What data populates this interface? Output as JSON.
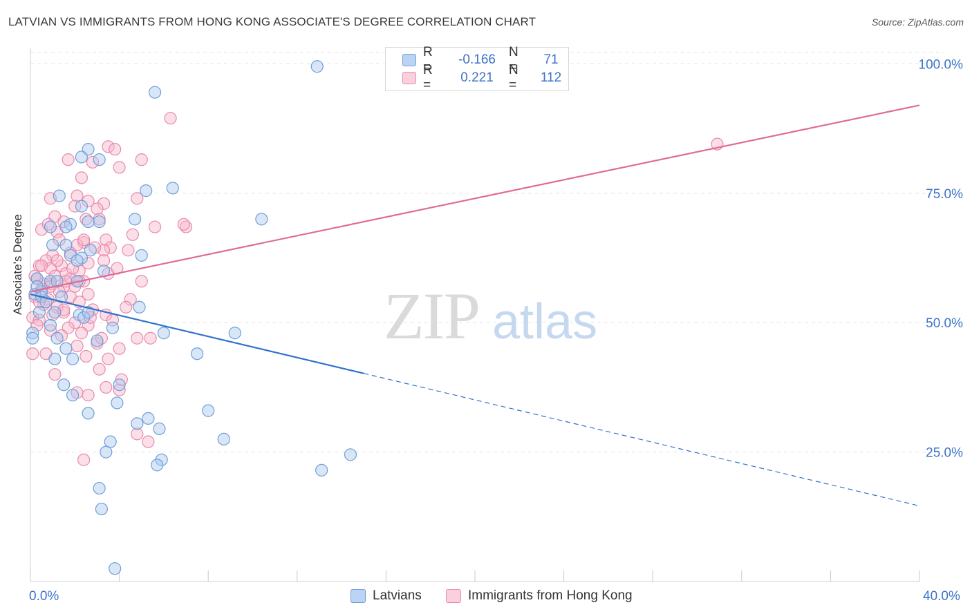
{
  "title": "LATVIAN VS IMMIGRANTS FROM HONG KONG ASSOCIATE'S DEGREE CORRELATION CHART",
  "source": "Source: ZipAtlas.com",
  "watermark": {
    "zip": "ZIP",
    "atlas": "atlas"
  },
  "colors": {
    "blue_fill": "#a9c8f0",
    "blue_stroke": "#6f9fd8",
    "blue_line": "#2e72cc",
    "pink_fill": "#f7b8cc",
    "pink_stroke": "#e98aaa",
    "pink_line": "#e06b95",
    "tick_text": "#3b73c9",
    "grid": "#e3e3e3"
  },
  "legend": {
    "rows": [
      {
        "r_label": "R =",
        "r_value": "-0.166",
        "n_label": "N =",
        "n_value": "71"
      },
      {
        "r_label": "R =",
        "r_value": "0.221",
        "n_label": "N =",
        "n_value": "112"
      }
    ]
  },
  "bottom_legend": [
    "Latvians",
    "Immigrants from Hong Kong"
  ],
  "chart_data": {
    "type": "scatter",
    "title": "LATVIAN VS IMMIGRANTS FROM HONG KONG ASSOCIATE'S DEGREE CORRELATION CHART",
    "xlabel": "",
    "ylabel": "Associate's Degree",
    "xlim": [
      0,
      40
    ],
    "ylim": [
      0,
      103
    ],
    "x_tick_labels": [
      "0.0%",
      "40.0%"
    ],
    "y_ticks": [
      25,
      50,
      75,
      100
    ],
    "y_tick_labels": [
      "25.0%",
      "50.0%",
      "75.0%",
      "100.0%"
    ],
    "grid": true,
    "legend_placement": "top-center",
    "series": [
      {
        "name": "Latvians",
        "R": -0.166,
        "N": 71,
        "trend": {
          "x0": 0,
          "y0": 55.5,
          "x1": 15.0,
          "y1": 40.2,
          "dash_to_x": 40,
          "dash_to_y": 14.6
        },
        "points": [
          [
            12.9,
            99.5
          ],
          [
            5.6,
            94.5
          ],
          [
            2.6,
            83.5
          ],
          [
            2.3,
            82
          ],
          [
            3.1,
            81.5
          ],
          [
            6.4,
            76
          ],
          [
            5.2,
            75.5
          ],
          [
            1.3,
            74.5
          ],
          [
            2.3,
            72.5
          ],
          [
            10.4,
            70
          ],
          [
            4.7,
            70
          ],
          [
            3.1,
            69.5
          ],
          [
            2.6,
            69.5
          ],
          [
            1.8,
            69
          ],
          [
            0.9,
            68.5
          ],
          [
            1.6,
            68.5
          ],
          [
            1.0,
            65
          ],
          [
            1.6,
            65
          ],
          [
            2.7,
            64
          ],
          [
            1.8,
            63
          ],
          [
            5.0,
            63
          ],
          [
            2.3,
            62.5
          ],
          [
            2.1,
            62
          ],
          [
            3.3,
            60
          ],
          [
            0.3,
            58.5
          ],
          [
            0.9,
            58
          ],
          [
            2.1,
            58
          ],
          [
            0.5,
            56
          ],
          [
            0.2,
            55.5
          ],
          [
            0.5,
            55
          ],
          [
            0.7,
            54
          ],
          [
            1.4,
            55
          ],
          [
            4.9,
            53
          ],
          [
            1.1,
            52
          ],
          [
            2.2,
            51.5
          ],
          [
            2.4,
            51
          ],
          [
            3.7,
            49
          ],
          [
            0.9,
            49.5
          ],
          [
            0.1,
            48
          ],
          [
            6.0,
            48
          ],
          [
            9.2,
            48
          ],
          [
            1.2,
            47
          ],
          [
            3.0,
            46.5
          ],
          [
            1.6,
            45
          ],
          [
            7.5,
            44
          ],
          [
            1.1,
            43
          ],
          [
            1.9,
            43
          ],
          [
            4.0,
            38
          ],
          [
            1.5,
            38
          ],
          [
            3.9,
            34.5
          ],
          [
            2.6,
            32.5
          ],
          [
            8.0,
            33
          ],
          [
            5.3,
            31.5
          ],
          [
            4.8,
            30.5
          ],
          [
            5.8,
            29.5
          ],
          [
            8.7,
            27.5
          ],
          [
            3.6,
            27
          ],
          [
            3.4,
            25
          ],
          [
            14.4,
            24.5
          ],
          [
            5.9,
            23.5
          ],
          [
            5.7,
            22.5
          ],
          [
            13.1,
            21.5
          ],
          [
            3.1,
            18
          ],
          [
            3.2,
            14
          ],
          [
            3.8,
            2.5
          ],
          [
            0.3,
            57
          ],
          [
            0.1,
            47
          ],
          [
            0.4,
            52
          ],
          [
            1.9,
            36
          ],
          [
            2.6,
            52
          ],
          [
            1.2,
            58
          ]
        ]
      },
      {
        "name": "Immigrants from Hong Kong",
        "R": 0.221,
        "N": 112,
        "trend": {
          "x0": 0,
          "y0": 56.0,
          "x1": 40,
          "y1": 92.0
        },
        "points": [
          [
            6.3,
            89.5
          ],
          [
            3.5,
            84
          ],
          [
            3.8,
            83.5
          ],
          [
            1.7,
            81.5
          ],
          [
            5.0,
            81.5
          ],
          [
            2.8,
            81
          ],
          [
            4.0,
            80
          ],
          [
            2.3,
            78
          ],
          [
            2.1,
            74.5
          ],
          [
            0.9,
            74
          ],
          [
            4.8,
            74
          ],
          [
            2.6,
            73.5
          ],
          [
            3.3,
            73
          ],
          [
            2.0,
            72.5
          ],
          [
            3.0,
            72
          ],
          [
            1.1,
            70.5
          ],
          [
            2.5,
            70
          ],
          [
            1.5,
            69.5
          ],
          [
            5.6,
            68.5
          ],
          [
            7.0,
            68.5
          ],
          [
            0.5,
            68
          ],
          [
            1.2,
            67.5
          ],
          [
            4.6,
            67
          ],
          [
            3.4,
            66
          ],
          [
            2.4,
            65.5
          ],
          [
            2.1,
            65
          ],
          [
            3.6,
            64.5
          ],
          [
            3.3,
            64
          ],
          [
            4.4,
            64
          ],
          [
            1.8,
            63.5
          ],
          [
            1.0,
            63
          ],
          [
            0.7,
            62
          ],
          [
            3.3,
            62
          ],
          [
            2.6,
            61.5
          ],
          [
            1.4,
            61
          ],
          [
            0.4,
            61
          ],
          [
            0.9,
            60.5
          ],
          [
            2.2,
            60
          ],
          [
            1.6,
            59.5
          ],
          [
            3.5,
            59.5
          ],
          [
            1.1,
            59
          ],
          [
            0.3,
            58.5
          ],
          [
            1.8,
            58.5
          ],
          [
            2.4,
            58
          ],
          [
            5.0,
            58
          ],
          [
            0.9,
            57.5
          ],
          [
            1.5,
            57
          ],
          [
            2.0,
            57
          ],
          [
            0.5,
            56.5
          ],
          [
            1.3,
            56
          ],
          [
            2.6,
            55.5
          ],
          [
            0.2,
            55
          ],
          [
            0.8,
            54.5
          ],
          [
            4.5,
            54.5
          ],
          [
            0.6,
            53.5
          ],
          [
            1.2,
            53
          ],
          [
            4.3,
            53
          ],
          [
            2.8,
            52.5
          ],
          [
            1.5,
            52
          ],
          [
            3.4,
            51.5
          ],
          [
            0.1,
            51
          ],
          [
            0.4,
            50.5
          ],
          [
            2.0,
            50
          ],
          [
            3.7,
            50.5
          ],
          [
            2.6,
            49.5
          ],
          [
            1.7,
            49
          ],
          [
            0.9,
            48.5
          ],
          [
            2.3,
            48
          ],
          [
            5.4,
            47
          ],
          [
            1.4,
            47.5
          ],
          [
            3.0,
            46
          ],
          [
            2.1,
            45.5
          ],
          [
            4.0,
            45
          ],
          [
            0.7,
            44
          ],
          [
            2.5,
            43.5
          ],
          [
            3.5,
            43
          ],
          [
            1.1,
            40
          ],
          [
            3.1,
            41
          ],
          [
            4.1,
            39
          ],
          [
            3.4,
            37.5
          ],
          [
            2.1,
            36.5
          ],
          [
            2.6,
            36
          ],
          [
            4.0,
            37
          ],
          [
            1.5,
            52.5
          ],
          [
            0.3,
            49.5
          ],
          [
            0.6,
            57.5
          ],
          [
            1.9,
            60.5
          ],
          [
            2.9,
            64.5
          ],
          [
            0.8,
            69
          ],
          [
            3.1,
            70
          ],
          [
            1.6,
            58
          ],
          [
            1.2,
            62
          ],
          [
            0.2,
            59
          ],
          [
            0.5,
            61
          ],
          [
            2.4,
            66
          ],
          [
            3.9,
            60.5
          ],
          [
            30.9,
            84.5
          ],
          [
            6.9,
            69
          ],
          [
            4.8,
            47
          ],
          [
            1.8,
            55
          ],
          [
            2.7,
            51
          ],
          [
            3.2,
            47
          ],
          [
            0.4,
            54
          ],
          [
            1.0,
            51.5
          ],
          [
            5.3,
            27
          ],
          [
            4.8,
            28.5
          ],
          [
            2.4,
            23.5
          ],
          [
            2.2,
            58
          ],
          [
            0.1,
            44
          ],
          [
            0.9,
            57
          ],
          [
            1.3,
            66
          ],
          [
            2.2,
            54
          ]
        ]
      }
    ]
  }
}
